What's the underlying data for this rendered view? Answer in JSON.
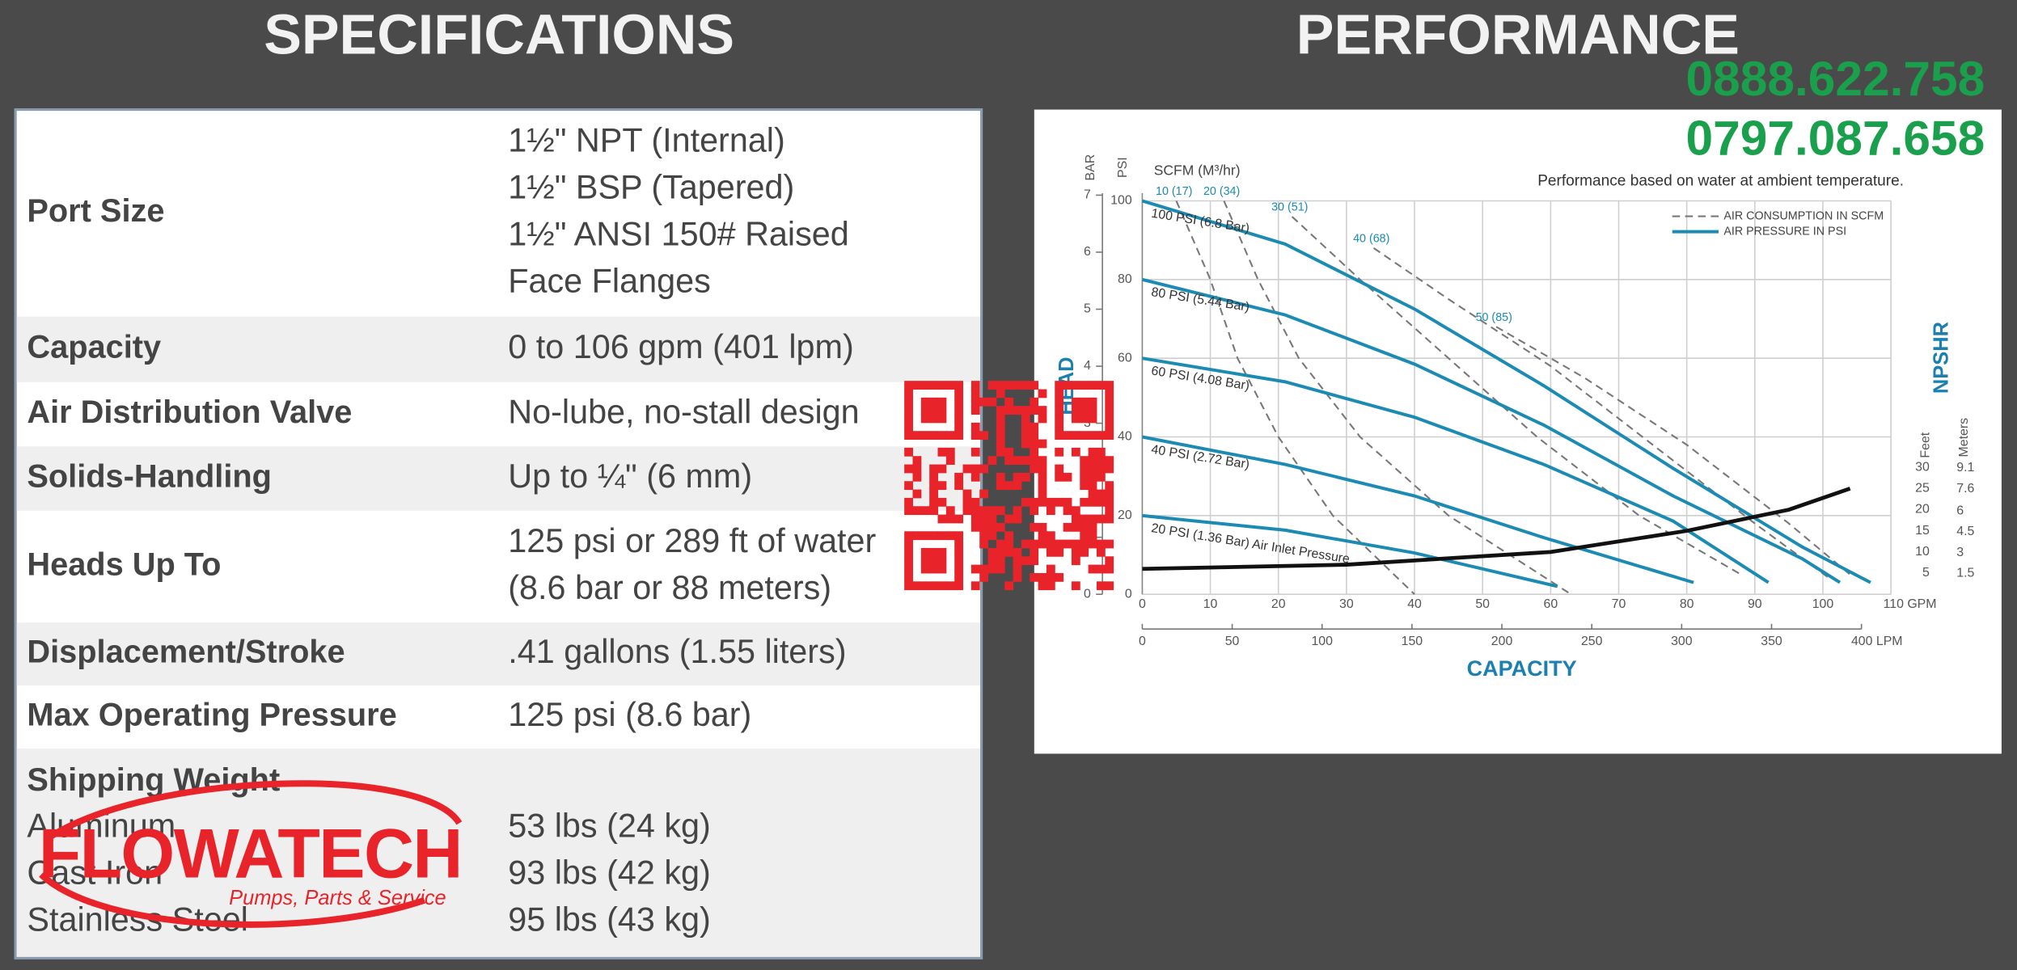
{
  "specifications": {
    "title": "SPECIFICATIONS",
    "rows": [
      {
        "label": "Port Size",
        "values": [
          "1½\" NPT (Internal)",
          "1½\" BSP (Tapered)",
          "1½\" ANSI 150# Raised",
          "Face Flanges"
        ]
      },
      {
        "label": "Capacity",
        "values": [
          "0 to 106 gpm (401 lpm)"
        ]
      },
      {
        "label": "Air Distribution Valve",
        "values": [
          "No-lube, no-stall design"
        ]
      },
      {
        "label": "Solids-Handling",
        "values": [
          "Up to ¼\" (6 mm)"
        ]
      },
      {
        "label": "Heads Up To",
        "values": [
          "125 psi or 289 ft of water",
          "(8.6 bar or 88 meters)"
        ]
      },
      {
        "label": "Displacement/Stroke",
        "values": [
          ".41 gallons (1.55 liters)"
        ]
      },
      {
        "label": "Max Operating Pressure",
        "values": [
          "125 psi (8.6 bar)"
        ]
      }
    ],
    "shipping": {
      "label": "Shipping Weight",
      "items": [
        {
          "label": "Aluminum",
          "value": "53 lbs (24 kg)"
        },
        {
          "label": "Cast Iron",
          "value": "93 lbs (42 kg)"
        },
        {
          "label": "Stainless Steel",
          "value": "95 lbs (43 kg)"
        }
      ]
    }
  },
  "performance": {
    "title": "PERFORMANCE",
    "chart_data": {
      "type": "line",
      "subtitle": "Performance based on water at ambient temperature.",
      "x_label": "CAPACITY",
      "y_label": "HEAD",
      "psi_label": "PSI",
      "bar_label": "BAR",
      "scfm_label": "SCFM (M³/hr)",
      "y2_label": "NPSHR",
      "feet_label": "Feet",
      "meters_label": "Meters",
      "grid": true,
      "xlim": [
        0,
        110
      ],
      "xticks": [
        0,
        10,
        20,
        30,
        40,
        50,
        60,
        70,
        80,
        90,
        100,
        {
          "value": 110,
          "label": "110 GPM"
        }
      ],
      "lpm_lim": [
        0,
        416.4
      ],
      "lpm_ticks": [
        0,
        50,
        100,
        150,
        200,
        250,
        300,
        350,
        {
          "value": 400,
          "label": "400 LPM"
        }
      ],
      "ylim": [
        0,
        100
      ],
      "yticks": [
        0,
        20,
        40,
        60,
        80,
        100
      ],
      "bar_lim": [
        0,
        6.9
      ],
      "bar_ticks": [
        0,
        1,
        2,
        3,
        4,
        5,
        6,
        7
      ],
      "y2lim": [
        0,
        93
      ],
      "y2ticks": [
        5,
        10,
        15,
        20,
        25,
        30
      ],
      "meters_lim": [
        0,
        28.35
      ],
      "meters_ticks": [
        1.5,
        3,
        4.5,
        6,
        7.6,
        9.1
      ],
      "legend": [
        {
          "name": "AIR CONSUMPTION IN SCFM",
          "color": "#777777",
          "dashed": true
        },
        {
          "name": "AIR PRESSURE IN PSI",
          "color": "#1b8bb4",
          "dashed": false
        }
      ],
      "pressure_color": "#1b8bb4",
      "pressure_curves": [
        {
          "name": "100 PSI (6.8 Bar)",
          "x": [
            0,
            21,
            40,
            59,
            78,
            97,
            107
          ],
          "y": [
            100,
            89,
            72.5,
            53,
            32,
            12,
            3
          ]
        },
        {
          "name": "80 PSI (5.44 Bar)",
          "x": [
            0,
            21,
            40,
            59,
            78,
            97,
            102.5
          ],
          "y": [
            80,
            71,
            58.5,
            43,
            25,
            9,
            3
          ]
        },
        {
          "name": "60 PSI (4.08 Bar)",
          "x": [
            0,
            21,
            40,
            59,
            78,
            92
          ],
          "y": [
            60,
            54,
            45,
            33,
            18.6,
            3
          ]
        },
        {
          "name": "40 PSI (2.72 Bar)",
          "x": [
            0,
            21,
            40,
            59,
            81
          ],
          "y": [
            40,
            33,
            25,
            14.4,
            3
          ]
        },
        {
          "name": "20 PSI (1.36 Bar) Air Inlet Pressure",
          "x": [
            0,
            21,
            40,
            61
          ],
          "y": [
            20,
            16.3,
            10.5,
            2
          ]
        }
      ],
      "air_color": "#777777",
      "air_curves": [
        {
          "name": "10 (17)",
          "x": [
            5,
            10,
            14,
            20,
            28,
            40
          ],
          "y": [
            100,
            80,
            60,
            40,
            20,
            0
          ]
        },
        {
          "name": "20 (34)",
          "x": [
            12,
            17,
            23,
            32,
            45,
            63
          ],
          "y": [
            100,
            80,
            60,
            40,
            20,
            0
          ]
        },
        {
          "name": "30 (51)",
          "x": [
            22,
            32,
            45,
            58,
            73,
            88
          ],
          "y": [
            96,
            80,
            60,
            40,
            20,
            5
          ]
        },
        {
          "name": "40 (68)",
          "x": [
            34,
            45,
            60,
            75,
            90,
            101
          ],
          "y": [
            88,
            75,
            58,
            38,
            18,
            4
          ]
        },
        {
          "name": "50 (85)",
          "x": [
            52,
            65,
            80,
            95,
            104
          ],
          "y": [
            68,
            55,
            38,
            18,
            5
          ]
        }
      ],
      "npshr_curve": {
        "axis": "y2",
        "color": "#111111",
        "x": [
          0,
          30,
          60,
          80,
          95,
          104
        ],
        "y": [
          6,
          7,
          10,
          15,
          20,
          25
        ]
      }
    }
  },
  "contact": {
    "phones": [
      "0888.622.758",
      "0797.087.658"
    ]
  },
  "logo": {
    "name": "FLOWATECH",
    "tagline": "Pumps, Parts & Service"
  }
}
